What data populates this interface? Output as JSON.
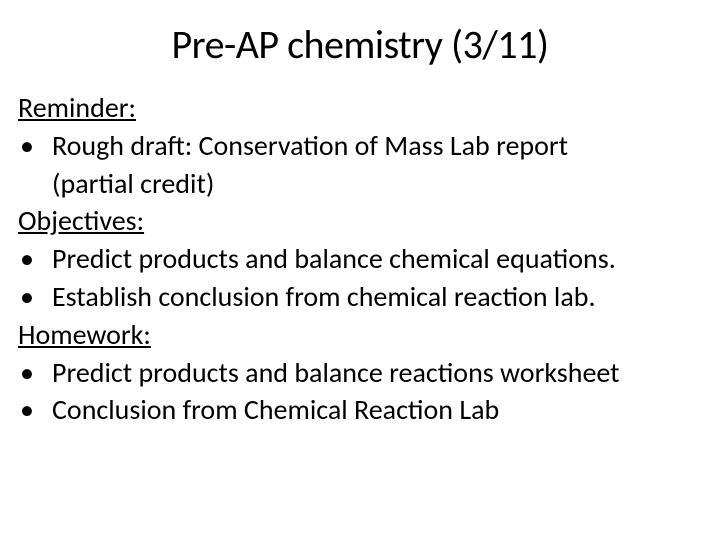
{
  "title": "Pre-AP chemistry (3/11)",
  "sections": {
    "reminder": {
      "heading": "Reminder:",
      "item1_line1": "Rough draft:  Conservation of Mass Lab report",
      "item1_line2": "(partial credit)"
    },
    "objectives": {
      "heading": "Objectives:",
      "item1": "Predict products and balance chemical equations.",
      "item2": "Establish conclusion from chemical reaction lab."
    },
    "homework": {
      "heading": "Homework:",
      "item1": "Predict products and balance reactions worksheet",
      "item2": "Conclusion from Chemical Reaction Lab"
    }
  },
  "colors": {
    "background": "#ffffff",
    "text": "#000000"
  },
  "typography": {
    "title_fontsize": 40,
    "body_fontsize": 28,
    "font_family": "Calibri"
  }
}
